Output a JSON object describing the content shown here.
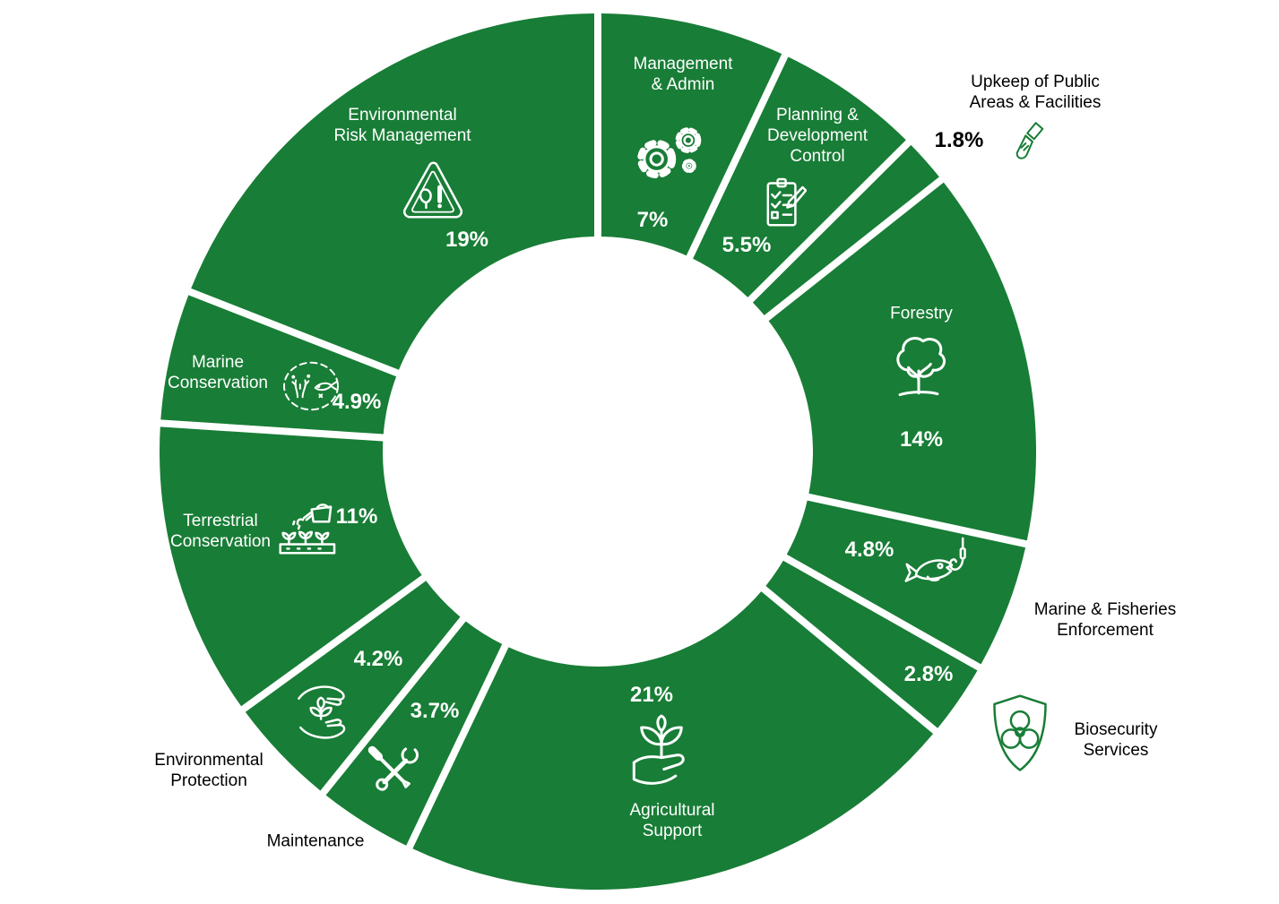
{
  "chart_data": {
    "type": "pie",
    "variant": "donut",
    "unit": "%",
    "start_angle_deg": 0,
    "direction": "clockwise",
    "donut_hole_ratio": 0.49,
    "legend_position": "none",
    "grid": false,
    "colors": {
      "segment_fill": "#187d36",
      "gap": "#ffffff",
      "label_inside": "#ffffff",
      "label_outside": "#000000"
    },
    "segments": [
      {
        "label": "Management\n& Admin",
        "value": 7,
        "pct_label": "7%",
        "icon": "gears-icon",
        "label_placement": "inside"
      },
      {
        "label": "Planning &\nDevelopment\nControl",
        "value": 5.5,
        "pct_label": "5.5%",
        "icon": "checklist-pencil-icon",
        "label_placement": "inside"
      },
      {
        "label": "Upkeep of Public\nAreas & Facilities",
        "value": 1.8,
        "pct_label": "1.8%",
        "icon": "paintbrush-icon",
        "label_placement": "outside"
      },
      {
        "label": "Forestry",
        "value": 14,
        "pct_label": "14%",
        "icon": "tree-icon",
        "label_placement": "inside"
      },
      {
        "label": "Marine & Fisheries\nEnforcement",
        "value": 4.8,
        "pct_label": "4.8%",
        "icon": "fish-hook-icon",
        "label_placement": "outside"
      },
      {
        "label": "Biosecurity\nServices",
        "value": 2.8,
        "pct_label": "2.8%",
        "icon": "biohazard-shield-icon",
        "label_placement": "outside"
      },
      {
        "label": "Agricultural\nSupport",
        "value": 21,
        "pct_label": "21%",
        "icon": "hand-seedling-icon",
        "label_placement": "inside"
      },
      {
        "label": "Maintenance",
        "value": 3.7,
        "pct_label": "3.7%",
        "icon": "crossed-tools-icon",
        "label_placement": "outside"
      },
      {
        "label": "Environmental\nProtection",
        "value": 4.2,
        "pct_label": "4.2%",
        "icon": "hands-plant-icon",
        "label_placement": "outside"
      },
      {
        "label": "Terrestrial\nConservation",
        "value": 11,
        "pct_label": "11%",
        "icon": "watering-garden-icon",
        "label_placement": "inside"
      },
      {
        "label": "Marine\nConservation",
        "value": 4.9,
        "pct_label": "4.9%",
        "icon": "coral-reef-icon",
        "label_placement": "inside"
      },
      {
        "label": "Environmental\nRisk Management",
        "value": 19,
        "pct_label": "19%",
        "icon": "warning-leaf-triangle-icon",
        "label_placement": "inside"
      }
    ]
  }
}
